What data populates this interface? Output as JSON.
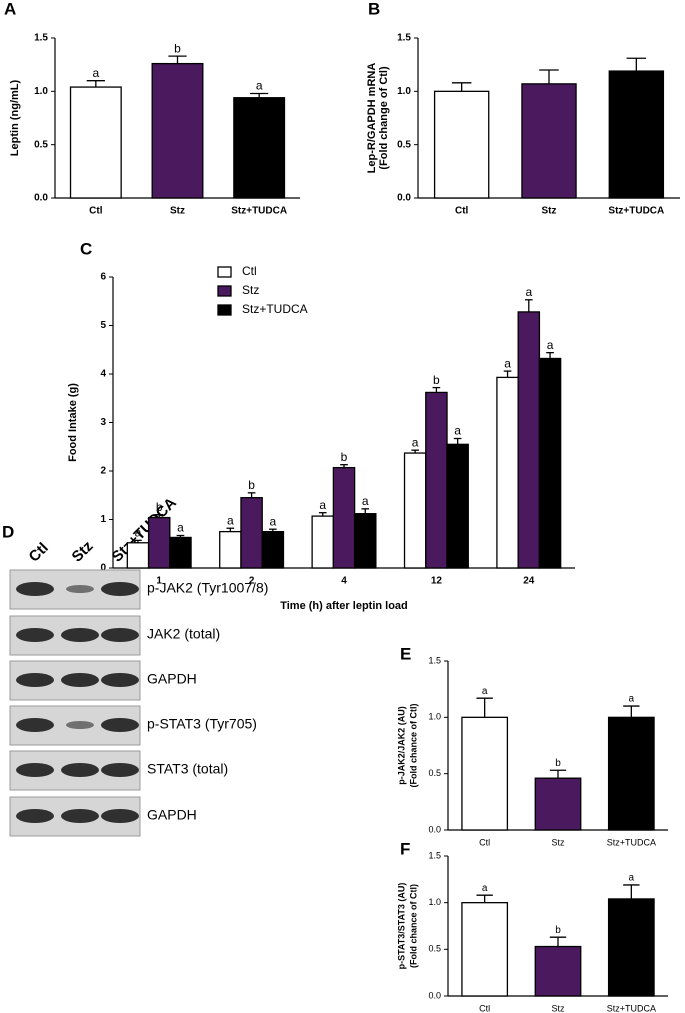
{
  "chart_data": [
    {
      "type": "bar",
      "panel": "A",
      "ylabel": "Leptin (ng/mL)",
      "categories": [
        "Ctl",
        "Stz",
        "Stz+TUDCA"
      ],
      "values": [
        1.04,
        1.26,
        0.94
      ],
      "errors": [
        0.06,
        0.07,
        0.04
      ],
      "letters": [
        "a",
        "b",
        "a"
      ],
      "colors": [
        "#ffffff",
        "#4b1a5e",
        "#000000"
      ],
      "ylim": [
        0,
        1.5
      ],
      "yticks": [
        {
          "value": 0,
          "label": "0.0"
        },
        {
          "value": 0.5,
          "label": "0.5"
        },
        {
          "value": 1,
          "label": "1.0"
        },
        {
          "value": 1.5,
          "label": "1.5"
        }
      ]
    },
    {
      "type": "bar",
      "panel": "B",
      "ylabel": [
        "Lep-R/GAPDH mRNA",
        "(Fold change of Ctl)"
      ],
      "categories": [
        "Ctl",
        "Stz",
        "Stz+TUDCA"
      ],
      "values": [
        1.0,
        1.07,
        1.19
      ],
      "errors": [
        0.08,
        0.13,
        0.12
      ],
      "colors": [
        "#ffffff",
        "#4b1a5e",
        "#000000"
      ],
      "ylim": [
        0,
        1.5
      ],
      "yticks": [
        {
          "value": 0,
          "label": "0.0"
        },
        {
          "value": 0.5,
          "label": "0.5"
        },
        {
          "value": 1,
          "label": "1.0"
        },
        {
          "value": 1.5,
          "label": "1.5"
        }
      ]
    },
    {
      "type": "grouped_bar",
      "panel": "C",
      "ylabel": "Food Intake (g)",
      "xlabel": "Time (h) after leptin load",
      "categories": [
        "1",
        "2",
        "4",
        "12",
        "24"
      ],
      "series": [
        {
          "name": "Ctl",
          "color": "#ffffff",
          "values": [
            0.52,
            0.75,
            1.07,
            2.37,
            3.93
          ],
          "errors": [
            0.05,
            0.07,
            0.07,
            0.06,
            0.13
          ],
          "letters": [
            "a",
            "a",
            "a",
            "a",
            "a"
          ]
        },
        {
          "name": "Stz",
          "color": "#4b1a5e",
          "values": [
            1.04,
            1.45,
            2.07,
            3.62,
            5.28
          ],
          "errors": [
            0.06,
            0.1,
            0.06,
            0.1,
            0.25
          ],
          "letters": [
            "b",
            "b",
            "b",
            "b",
            "a"
          ]
        },
        {
          "name": "Stz+TUDCA",
          "color": "#000000",
          "values": [
            0.63,
            0.75,
            1.12,
            2.55,
            4.32
          ],
          "errors": [
            0.04,
            0.05,
            0.1,
            0.12,
            0.12
          ],
          "letters": [
            "a",
            "a",
            "a",
            "a",
            "a"
          ]
        }
      ],
      "ylim": [
        0,
        6
      ],
      "yticks": [
        0,
        1,
        2,
        3,
        4,
        5,
        6
      ],
      "legend": "top-left"
    },
    {
      "type": "bar",
      "panel": "E",
      "ylabel": [
        "p-JAK2/JAK2 (AU)",
        "(Fold chance of Ctl)"
      ],
      "categories": [
        "Ctl",
        "Stz",
        "Stz+TUDCA"
      ],
      "values": [
        1.0,
        0.46,
        1.0
      ],
      "errors": [
        0.17,
        0.07,
        0.1
      ],
      "letters": [
        "a",
        "b",
        "a"
      ],
      "colors": [
        "#ffffff",
        "#4b1a5e",
        "#000000"
      ],
      "ylim": [
        0,
        1.5
      ],
      "yticks": [
        {
          "value": 0,
          "label": "0.0"
        },
        {
          "value": 0.5,
          "label": "0.5"
        },
        {
          "value": 1,
          "label": "1.0"
        },
        {
          "value": 1.5,
          "label": "1.5"
        }
      ]
    },
    {
      "type": "bar",
      "panel": "F",
      "ylabel": [
        "p-STAT3/STAT3 (AU)",
        "(Fold chance of Ctl)"
      ],
      "categories": [
        "Ctl",
        "Stz",
        "Stz+TUDCA"
      ],
      "values": [
        1.0,
        0.53,
        1.04
      ],
      "errors": [
        0.08,
        0.1,
        0.15
      ],
      "letters": [
        "a",
        "b",
        "a"
      ],
      "colors": [
        "#ffffff",
        "#4b1a5e",
        "#000000"
      ],
      "ylim": [
        0,
        1.5
      ],
      "yticks": [
        {
          "value": 0,
          "label": "0.0"
        },
        {
          "value": 0.5,
          "label": "0.5"
        },
        {
          "value": 1,
          "label": "1.0"
        },
        {
          "value": 1.5,
          "label": "1.5"
        }
      ]
    }
  ],
  "blot": {
    "panel": "D",
    "lanes": [
      "Ctl",
      "Stz",
      "Stz+TUDCA"
    ],
    "rows": [
      "p-JAK2 (Tyr1007/8)",
      "JAK2 (total)",
      "GAPDH",
      "p-STAT3 (Tyr705)",
      "STAT3 (total)",
      "GAPDH"
    ]
  }
}
